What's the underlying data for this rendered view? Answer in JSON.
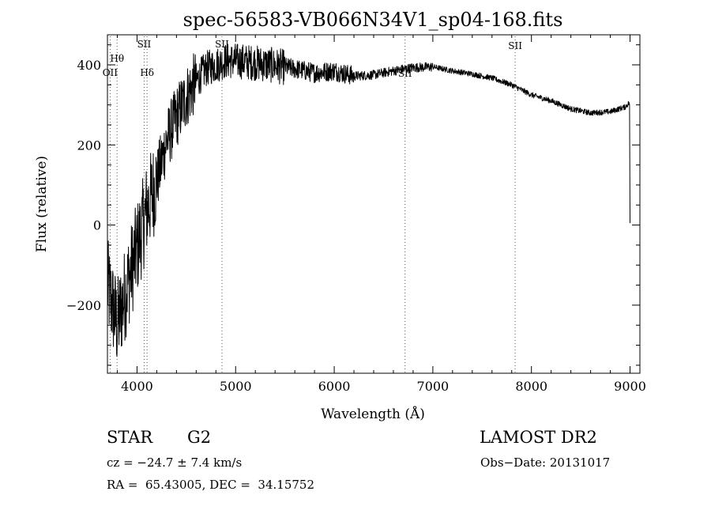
{
  "chart_data": {
    "type": "line",
    "title": "spec-56583-VB066N34V1_sp04-168.fits",
    "xlabel": "Wavelength (Å)",
    "ylabel": "Flux (relative)",
    "xlim": [
      3700,
      9100
    ],
    "ylim": [
      -370,
      475
    ],
    "x_ticks": [
      4000,
      5000,
      6000,
      7000,
      8000,
      9000
    ],
    "y_ticks": [
      -200,
      0,
      200,
      400
    ],
    "grid": false,
    "line_color": "#000000",
    "line_markers": [
      {
        "label": "OII",
        "x": 3727
      },
      {
        "label": "Hθ",
        "x": 3798
      },
      {
        "label": "Hδ",
        "x": 4102
      },
      {
        "label": "SII",
        "x": 4072
      },
      {
        "label": "SII",
        "x": 4862
      },
      {
        "label": "SII",
        "x": 6718
      },
      {
        "label": "SII",
        "x": 7835
      }
    ],
    "spectrum_anchors": [
      [
        3700,
        -150
      ],
      [
        3800,
        -250
      ],
      [
        3900,
        -150
      ],
      [
        4000,
        -60
      ],
      [
        4100,
        40
      ],
      [
        4200,
        110
      ],
      [
        4300,
        210
      ],
      [
        4400,
        270
      ],
      [
        4500,
        320
      ],
      [
        4600,
        360
      ],
      [
        4700,
        390
      ],
      [
        4800,
        400
      ],
      [
        4900,
        410
      ],
      [
        5000,
        410
      ],
      [
        5200,
        405
      ],
      [
        5400,
        398
      ],
      [
        5600,
        390
      ],
      [
        5800,
        380
      ],
      [
        6000,
        385
      ],
      [
        6200,
        372
      ],
      [
        6400,
        375
      ],
      [
        6600,
        385
      ],
      [
        6800,
        393
      ],
      [
        7000,
        395
      ],
      [
        7200,
        385
      ],
      [
        7400,
        377
      ],
      [
        7600,
        367
      ],
      [
        7800,
        350
      ],
      [
        8000,
        325
      ],
      [
        8200,
        310
      ],
      [
        8400,
        290
      ],
      [
        8600,
        280
      ],
      [
        8800,
        283
      ],
      [
        8950,
        295
      ],
      [
        8990,
        305
      ],
      [
        9000,
        5
      ]
    ]
  },
  "info": {
    "object_class": "STAR",
    "subclass": "G2",
    "survey": "LAMOST DR2",
    "cz": "cz = −24.7 ± 7.4 km/s",
    "obs_date": "Obs−Date: 20131017",
    "coords": "RA =  65.43005, DEC =  34.15752"
  }
}
